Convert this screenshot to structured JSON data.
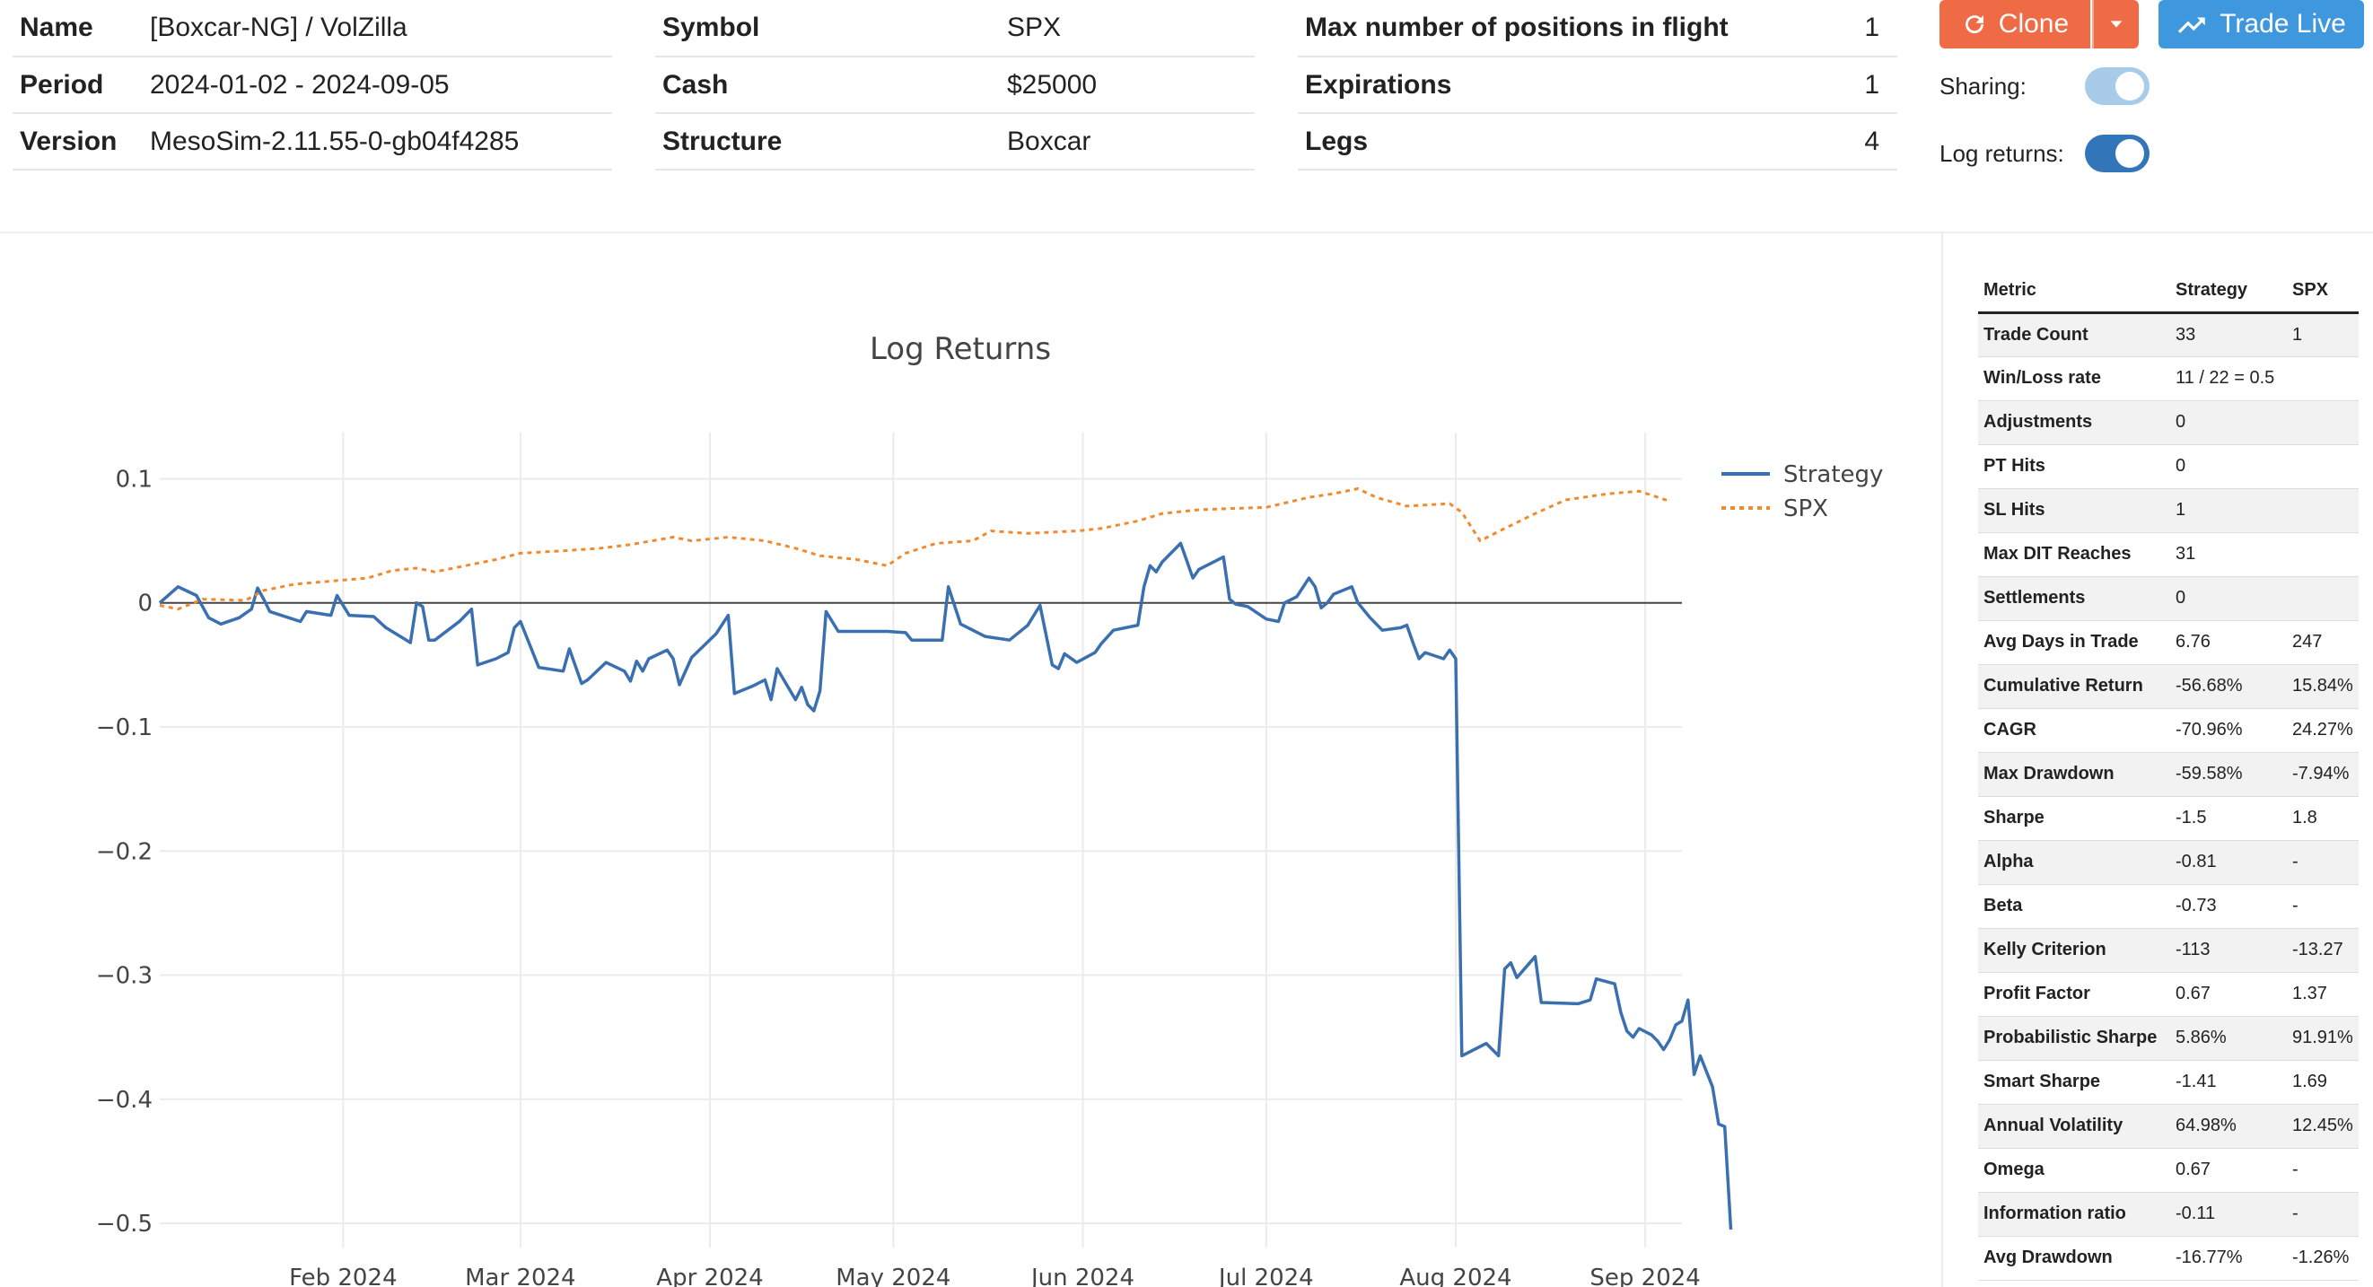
{
  "info": {
    "col1": [
      {
        "label": "Name",
        "value": "[Boxcar-NG] / VolZilla"
      },
      {
        "label": "Period",
        "value": "2024-01-02 - 2024-09-05"
      },
      {
        "label": "Version",
        "value": "MesoSim-2.11.55-0-gb04f4285"
      }
    ],
    "col2": [
      {
        "label": "Symbol",
        "value": "SPX"
      },
      {
        "label": "Cash",
        "value": "$25000"
      },
      {
        "label": "Structure",
        "value": "Boxcar"
      }
    ],
    "col3": [
      {
        "label": "Max number of positions in flight",
        "value": "1"
      },
      {
        "label": "Expirations",
        "value": "1"
      },
      {
        "label": "Legs",
        "value": "4"
      }
    ]
  },
  "actions": {
    "clone_label": "Clone",
    "trade_live_label": "Trade Live",
    "clone_icon": "refresh-icon",
    "caret_icon": "chevron-down-icon",
    "trade_icon": "trending-up-icon",
    "clone_color": "#ef6b45",
    "trade_color": "#3f97dd"
  },
  "toggles": {
    "sharing_label": "Sharing:",
    "sharing_on": true,
    "sharing_color": "#a7cbe9",
    "log_label": "Log returns:",
    "log_on": true,
    "log_color": "#3276b9"
  },
  "metrics": {
    "headers": [
      "Metric",
      "Strategy",
      "SPX"
    ],
    "rows": [
      [
        "Trade Count",
        "33",
        "1"
      ],
      [
        "Win/Loss rate",
        "11 / 22 = 0.5",
        ""
      ],
      [
        "Adjustments",
        "0",
        ""
      ],
      [
        "PT Hits",
        "0",
        ""
      ],
      [
        "SL Hits",
        "1",
        ""
      ],
      [
        "Max DIT Reaches",
        "31",
        ""
      ],
      [
        "Settlements",
        "0",
        ""
      ],
      [
        "Avg Days in Trade",
        "6.76",
        "247"
      ],
      [
        "Cumulative Return",
        "-56.68%",
        "15.84%"
      ],
      [
        "CAGR",
        "-70.96%",
        "24.27%"
      ],
      [
        "Max Drawdown",
        "-59.58%",
        "-7.94%"
      ],
      [
        "Sharpe",
        "-1.5",
        "1.8"
      ],
      [
        "Alpha",
        "-0.81",
        "-"
      ],
      [
        "Beta",
        "-0.73",
        "-"
      ],
      [
        "Kelly Criterion",
        "-113",
        "-13.27"
      ],
      [
        "Profit Factor",
        "0.67",
        "1.37"
      ],
      [
        "Probabilistic Sharpe",
        "5.86%",
        "91.91%"
      ],
      [
        "Smart Sharpe",
        "-1.41",
        "1.69"
      ],
      [
        "Annual Volatility",
        "64.98%",
        "12.45%"
      ],
      [
        "Omega",
        "0.67",
        "-"
      ],
      [
        "Information ratio",
        "-0.11",
        "-"
      ],
      [
        "Avg Drawdown",
        "-16.77%",
        "-1.26%"
      ]
    ]
  },
  "chart_data": {
    "type": "line",
    "title": "Log Returns",
    "xlabel": "",
    "ylabel": "",
    "xlim": [
      "2024-01-02",
      "2024-09-07"
    ],
    "ylim": [
      -0.505,
      0.13
    ],
    "yticks": [
      0.1,
      0,
      -0.1,
      -0.2,
      -0.3,
      -0.4,
      -0.5
    ],
    "ytick_labels": [
      "0.1",
      "0",
      "−0.1",
      "−0.2",
      "−0.3",
      "−0.4",
      "−0.5"
    ],
    "xticks": [
      "2024-02-01",
      "2024-03-01",
      "2024-04-01",
      "2024-05-01",
      "2024-06-01",
      "2024-07-01",
      "2024-08-01",
      "2024-09-01"
    ],
    "xtick_labels": [
      "Feb 2024",
      "Mar 2024",
      "Apr 2024",
      "May 2024",
      "Jun 2024",
      "Jul 2024",
      "Aug 2024",
      "Sep 2024"
    ],
    "grid": true,
    "zero_line": true,
    "legend_position": "top-right",
    "series": [
      {
        "name": "Strategy",
        "color": "#3a6fb0",
        "style": "solid",
        "points": [
          [
            "2024-01-02",
            0.0
          ],
          [
            "2024-01-05",
            0.013
          ],
          [
            "2024-01-08",
            0.006
          ],
          [
            "2024-01-10",
            -0.012
          ],
          [
            "2024-01-12",
            -0.017
          ],
          [
            "2024-01-15",
            -0.012
          ],
          [
            "2024-01-17",
            -0.005
          ],
          [
            "2024-01-18",
            0.012
          ],
          [
            "2024-01-19",
            0.003
          ],
          [
            "2024-01-20",
            -0.007
          ],
          [
            "2024-01-25",
            -0.015
          ],
          [
            "2024-01-26",
            -0.007
          ],
          [
            "2024-01-30",
            -0.01
          ],
          [
            "2024-01-31",
            0.006
          ],
          [
            "2024-02-02",
            -0.01
          ],
          [
            "2024-02-06",
            -0.011
          ],
          [
            "2024-02-08",
            -0.02
          ],
          [
            "2024-02-12",
            -0.032
          ],
          [
            "2024-02-13",
            0.0
          ],
          [
            "2024-02-14",
            -0.003
          ],
          [
            "2024-02-15",
            -0.03
          ],
          [
            "2024-02-16",
            -0.03
          ],
          [
            "2024-02-20",
            -0.015
          ],
          [
            "2024-02-22",
            -0.005
          ],
          [
            "2024-02-23",
            -0.05
          ],
          [
            "2024-02-26",
            -0.045
          ],
          [
            "2024-02-28",
            -0.04
          ],
          [
            "2024-02-29",
            -0.02
          ],
          [
            "2024-03-01",
            -0.015
          ],
          [
            "2024-03-04",
            -0.052
          ],
          [
            "2024-03-08",
            -0.055
          ],
          [
            "2024-03-09",
            -0.037
          ],
          [
            "2024-03-11",
            -0.065
          ],
          [
            "2024-03-12",
            -0.062
          ],
          [
            "2024-03-15",
            -0.048
          ],
          [
            "2024-03-18",
            -0.055
          ],
          [
            "2024-03-19",
            -0.063
          ],
          [
            "2024-03-20",
            -0.047
          ],
          [
            "2024-03-21",
            -0.055
          ],
          [
            "2024-03-22",
            -0.045
          ],
          [
            "2024-03-25",
            -0.038
          ],
          [
            "2024-03-26",
            -0.045
          ],
          [
            "2024-03-27",
            -0.066
          ],
          [
            "2024-03-29",
            -0.044
          ],
          [
            "2024-04-02",
            -0.025
          ],
          [
            "2024-04-04",
            -0.01
          ],
          [
            "2024-04-05",
            -0.073
          ],
          [
            "2024-04-08",
            -0.067
          ],
          [
            "2024-04-10",
            -0.062
          ],
          [
            "2024-04-11",
            -0.078
          ],
          [
            "2024-04-12",
            -0.053
          ],
          [
            "2024-04-15",
            -0.078
          ],
          [
            "2024-04-16",
            -0.068
          ],
          [
            "2024-04-17",
            -0.082
          ],
          [
            "2024-04-18",
            -0.087
          ],
          [
            "2024-04-19",
            -0.071
          ],
          [
            "2024-04-20",
            -0.007
          ],
          [
            "2024-04-22",
            -0.023
          ],
          [
            "2024-04-30",
            -0.023
          ],
          [
            "2024-05-03",
            -0.024
          ],
          [
            "2024-05-04",
            -0.03
          ],
          [
            "2024-05-09",
            -0.03
          ],
          [
            "2024-05-10",
            0.013
          ],
          [
            "2024-05-12",
            -0.017
          ],
          [
            "2024-05-16",
            -0.027
          ],
          [
            "2024-05-20",
            -0.03
          ],
          [
            "2024-05-23",
            -0.018
          ],
          [
            "2024-05-25",
            -0.002
          ],
          [
            "2024-05-27",
            -0.05
          ],
          [
            "2024-05-28",
            -0.053
          ],
          [
            "2024-05-29",
            -0.041
          ],
          [
            "2024-05-31",
            -0.048
          ],
          [
            "2024-06-03",
            -0.04
          ],
          [
            "2024-06-04",
            -0.033
          ],
          [
            "2024-06-06",
            -0.022
          ],
          [
            "2024-06-10",
            -0.018
          ],
          [
            "2024-06-11",
            0.013
          ],
          [
            "2024-06-12",
            0.03
          ],
          [
            "2024-06-13",
            0.025
          ],
          [
            "2024-06-14",
            0.033
          ],
          [
            "2024-06-17",
            0.048
          ],
          [
            "2024-06-18",
            0.034
          ],
          [
            "2024-06-19",
            0.02
          ],
          [
            "2024-06-20",
            0.027
          ],
          [
            "2024-06-24",
            0.037
          ],
          [
            "2024-06-25",
            0.003
          ],
          [
            "2024-06-26",
            -0.001
          ],
          [
            "2024-06-28",
            -0.003
          ],
          [
            "2024-07-01",
            -0.013
          ],
          [
            "2024-07-03",
            -0.015
          ],
          [
            "2024-07-04",
            0.0
          ],
          [
            "2024-07-06",
            0.005
          ],
          [
            "2024-07-08",
            0.02
          ],
          [
            "2024-07-09",
            0.013
          ],
          [
            "2024-07-10",
            -0.004
          ],
          [
            "2024-07-11",
            0.0
          ],
          [
            "2024-07-12",
            0.007
          ],
          [
            "2024-07-15",
            0.013
          ],
          [
            "2024-07-16",
            0.0
          ],
          [
            "2024-07-18",
            -0.012
          ],
          [
            "2024-07-20",
            -0.022
          ],
          [
            "2024-07-23",
            -0.02
          ],
          [
            "2024-07-24",
            -0.018
          ],
          [
            "2024-07-25",
            -0.032
          ],
          [
            "2024-07-26",
            -0.045
          ],
          [
            "2024-07-27",
            -0.04
          ],
          [
            "2024-07-30",
            -0.045
          ],
          [
            "2024-07-31",
            -0.038
          ],
          [
            "2024-08-01",
            -0.045
          ],
          [
            "2024-08-02",
            -0.365
          ],
          [
            "2024-08-06",
            -0.355
          ],
          [
            "2024-08-08",
            -0.365
          ],
          [
            "2024-08-09",
            -0.295
          ],
          [
            "2024-08-10",
            -0.29
          ],
          [
            "2024-08-11",
            -0.302
          ],
          [
            "2024-08-14",
            -0.285
          ],
          [
            "2024-08-15",
            -0.322
          ],
          [
            "2024-08-21",
            -0.323
          ],
          [
            "2024-08-23",
            -0.32
          ],
          [
            "2024-08-24",
            -0.303
          ],
          [
            "2024-08-27",
            -0.307
          ],
          [
            "2024-08-28",
            -0.33
          ],
          [
            "2024-08-29",
            -0.345
          ],
          [
            "2024-08-30",
            -0.35
          ],
          [
            "2024-08-31",
            -0.343
          ],
          [
            "2024-09-02",
            -0.348
          ],
          [
            "2024-09-03",
            -0.353
          ],
          [
            "2024-09-04",
            -0.36
          ],
          [
            "2024-09-05",
            -0.352
          ],
          [
            "2024-09-06",
            -0.34
          ],
          [
            "2024-09-07",
            -0.337
          ],
          [
            "2024-09-08",
            -0.32
          ],
          [
            "2024-09-09",
            -0.38
          ],
          [
            "2024-09-10",
            -0.365
          ],
          [
            "2024-09-12",
            -0.39
          ],
          [
            "2024-09-13",
            -0.42
          ],
          [
            "2024-09-14",
            -0.422
          ],
          [
            "2024-09-15",
            -0.505
          ]
        ]
      },
      {
        "name": "SPX",
        "color": "#f08a2e",
        "style": "dotted",
        "points": [
          [
            "2024-01-02",
            -0.002
          ],
          [
            "2024-01-05",
            -0.005
          ],
          [
            "2024-01-09",
            0.003
          ],
          [
            "2024-01-16",
            0.002
          ],
          [
            "2024-01-19",
            0.01
          ],
          [
            "2024-01-24",
            0.015
          ],
          [
            "2024-01-31",
            0.018
          ],
          [
            "2024-02-05",
            0.02
          ],
          [
            "2024-02-09",
            0.026
          ],
          [
            "2024-02-13",
            0.028
          ],
          [
            "2024-02-16",
            0.025
          ],
          [
            "2024-02-21",
            0.03
          ],
          [
            "2024-02-26",
            0.035
          ],
          [
            "2024-03-01",
            0.04
          ],
          [
            "2024-03-08",
            0.042
          ],
          [
            "2024-03-14",
            0.044
          ],
          [
            "2024-03-19",
            0.047
          ],
          [
            "2024-03-26",
            0.053
          ],
          [
            "2024-03-29",
            0.05
          ],
          [
            "2024-04-04",
            0.053
          ],
          [
            "2024-04-10",
            0.05
          ],
          [
            "2024-04-15",
            0.044
          ],
          [
            "2024-04-19",
            0.038
          ],
          [
            "2024-04-25",
            0.035
          ],
          [
            "2024-04-30",
            0.03
          ],
          [
            "2024-05-03",
            0.04
          ],
          [
            "2024-05-08",
            0.048
          ],
          [
            "2024-05-14",
            0.05
          ],
          [
            "2024-05-17",
            0.058
          ],
          [
            "2024-05-23",
            0.056
          ],
          [
            "2024-05-31",
            0.058
          ],
          [
            "2024-06-04",
            0.06
          ],
          [
            "2024-06-10",
            0.066
          ],
          [
            "2024-06-14",
            0.072
          ],
          [
            "2024-06-20",
            0.075
          ],
          [
            "2024-06-25",
            0.076
          ],
          [
            "2024-07-01",
            0.077
          ],
          [
            "2024-07-08",
            0.085
          ],
          [
            "2024-07-12",
            0.088
          ],
          [
            "2024-07-16",
            0.092
          ],
          [
            "2024-07-19",
            0.085
          ],
          [
            "2024-07-24",
            0.078
          ],
          [
            "2024-07-31",
            0.08
          ],
          [
            "2024-08-02",
            0.073
          ],
          [
            "2024-08-05",
            0.05
          ],
          [
            "2024-08-09",
            0.06
          ],
          [
            "2024-08-14",
            0.072
          ],
          [
            "2024-08-19",
            0.083
          ],
          [
            "2024-08-26",
            0.088
          ],
          [
            "2024-08-31",
            0.09
          ],
          [
            "2024-09-05",
            0.082
          ]
        ]
      }
    ]
  }
}
